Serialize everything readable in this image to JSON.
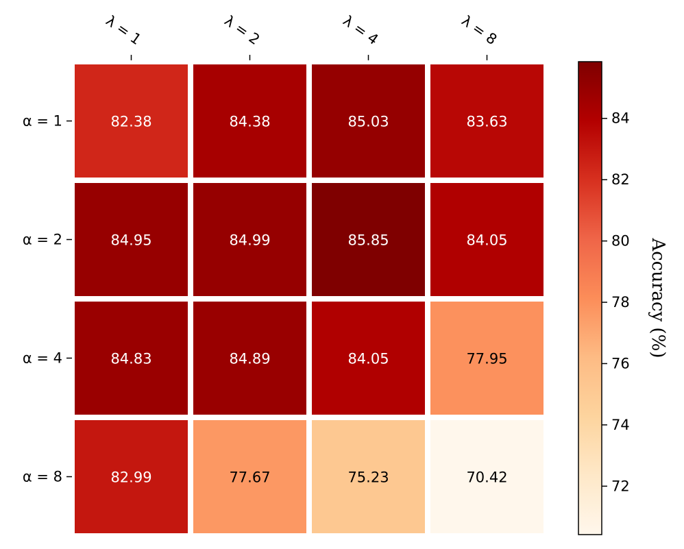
{
  "chart_data": {
    "type": "heatmap",
    "title": "",
    "x_labels": [
      "λ = 1",
      "λ = 2",
      "λ = 4",
      "λ = 8"
    ],
    "y_labels": [
      "α = 1",
      "α = 2",
      "α = 4",
      "α = 8"
    ],
    "values": [
      [
        82.38,
        84.38,
        85.03,
        83.63
      ],
      [
        84.95,
        84.99,
        85.85,
        84.05
      ],
      [
        84.83,
        84.89,
        84.05,
        77.95
      ],
      [
        82.99,
        77.67,
        75.23,
        70.42
      ]
    ],
    "value_labels": [
      [
        "82.38",
        "84.38",
        "85.03",
        "83.63"
      ],
      [
        "84.95",
        "84.99",
        "85.85",
        "84.05"
      ],
      [
        "84.83",
        "84.89",
        "84.05",
        "77.95"
      ],
      [
        "82.99",
        "77.67",
        "75.23",
        "70.42"
      ]
    ],
    "colorbar": {
      "label": "Accuracy (%)",
      "ticks": [
        72,
        74,
        76,
        78,
        80,
        82,
        84
      ],
      "tick_labels": [
        "72",
        "74",
        "76",
        "78",
        "80",
        "82",
        "84"
      ],
      "range": [
        70.42,
        85.85
      ],
      "colormap": [
        "#fff7ec",
        "#fee8c8",
        "#fdd49e",
        "#fdbb84",
        "#fc8d59",
        "#ef6548",
        "#d7301f",
        "#b30000",
        "#7f0000"
      ]
    },
    "grid": false,
    "legend": "colorbar on right"
  }
}
